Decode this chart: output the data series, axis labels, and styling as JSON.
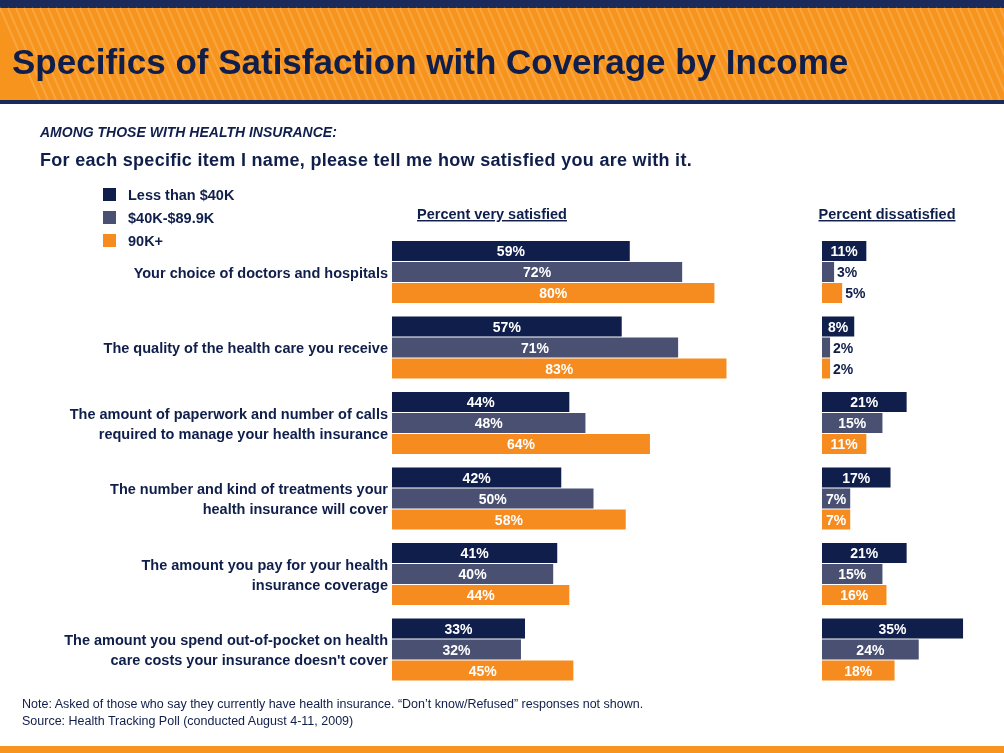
{
  "chart_data": [
    {
      "type": "bar",
      "orientation": "horizontal",
      "title": "Specifics of Satisfaction with Coverage by Income",
      "subtitle": "AMONG THOSE WITH HEALTH INSURANCE:\nFor each specific item I name, please tell me how satisfied you are with it.",
      "xlabel": "Percent very satisfied",
      "legend": "top left",
      "categories": [
        "Your choice of doctors and hospitals",
        "The quality of the health care you receive",
        "The amount of paperwork and number of calls\nrequired to manage your health insurance",
        "The number and kind of treatments your\nhealth insurance will cover",
        "The amount you pay for your health\ninsurance coverage",
        "The amount you spend out-of-pocket on health\ncare costs your insurance doesn't cover"
      ],
      "series": [
        {
          "name": "Less than $40K",
          "color": "#0f1e4a",
          "values": [
            59,
            57,
            44,
            42,
            41,
            33
          ],
          "value_labels": [
            "59%",
            "57%",
            "44%",
            "42%",
            "41%",
            "33%"
          ]
        },
        {
          "name": "$40K-$89.9K",
          "color": "#4a5072",
          "values": [
            72,
            71,
            48,
            50,
            40,
            32
          ],
          "value_labels": [
            "72%",
            "71%",
            "48%",
            "50%",
            "40%",
            "32%"
          ]
        },
        {
          "name": "90K+",
          "color": "#f68b1f",
          "values": [
            80,
            83,
            64,
            58,
            44,
            45
          ],
          "value_labels": [
            "80%",
            "83%",
            "64%",
            "58%",
            "44%",
            "45%"
          ]
        }
      ],
      "annotations": [
        "Note: Asked of those who say they currently have health insurance.  “Don’t know/Refused” responses not shown.",
        "Source: Health Tracking Poll (conducted August 4-11, 2009)"
      ]
    },
    {
      "type": "bar",
      "orientation": "horizontal",
      "xlabel": "Percent dissatisfied",
      "categories": [
        null,
        null,
        null,
        null,
        null,
        null
      ],
      "series": [
        {
          "color": "#0f1e4a",
          "values": [
            11,
            8,
            21,
            17,
            21,
            35
          ],
          "value_labels": [
            "11%",
            "8%",
            "21%",
            "17%",
            "21%",
            "35%"
          ]
        },
        {
          "color": "#4a5072",
          "values": [
            3,
            2,
            15,
            7,
            15,
            24
          ],
          "value_labels": [
            "3%",
            "2%",
            "15%",
            "7%",
            "15%",
            "24%"
          ]
        },
        {
          "color": "#f68b1f",
          "values": [
            5,
            2,
            11,
            7,
            16,
            18
          ],
          "value_labels": [
            "5%",
            "2%",
            "11%",
            "7%",
            "16%",
            "18%"
          ]
        }
      ]
    }
  ]
}
